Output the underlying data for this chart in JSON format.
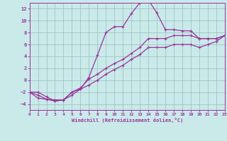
{
  "xlabel": "Windchill (Refroidissement éolien,°C)",
  "bg_color": "#caeaea",
  "line_color": "#993399",
  "grid_color": "#99bbbb",
  "x_min": 0,
  "x_max": 23,
  "y_min": -5,
  "y_max": 13,
  "yticks": [
    -4,
    -2,
    0,
    2,
    4,
    6,
    8,
    10,
    12
  ],
  "xticks": [
    0,
    1,
    2,
    3,
    4,
    5,
    6,
    7,
    8,
    9,
    10,
    11,
    12,
    13,
    14,
    15,
    16,
    17,
    18,
    19,
    20,
    21,
    22,
    23
  ],
  "curve1_x": [
    0,
    1,
    2,
    3,
    4,
    5,
    6,
    7,
    8,
    9,
    10,
    11,
    12,
    13,
    14,
    15,
    16,
    17,
    18,
    19,
    20,
    21,
    22,
    23
  ],
  "curve1_y": [
    -2.0,
    -3.0,
    -3.2,
    -3.5,
    -3.3,
    -2.5,
    -1.5,
    0.5,
    4.2,
    8.0,
    9.0,
    9.0,
    11.2,
    13.0,
    13.5,
    11.3,
    8.5,
    8.5,
    8.3,
    8.3,
    7.0,
    7.0,
    7.0,
    7.5
  ],
  "curve2_x": [
    0,
    1,
    2,
    3,
    4,
    5,
    6,
    7,
    8,
    9,
    10,
    11,
    12,
    13,
    14,
    15,
    16,
    17,
    18,
    19,
    20,
    21,
    22,
    23
  ],
  "curve2_y": [
    -2.0,
    -2.5,
    -3.2,
    -3.3,
    -3.3,
    -2.0,
    -1.3,
    0.2,
    1.0,
    2.0,
    2.8,
    3.5,
    4.5,
    5.5,
    7.0,
    7.0,
    7.0,
    7.5,
    7.5,
    7.5,
    7.0,
    7.0,
    7.0,
    7.5
  ],
  "curve3_x": [
    0,
    1,
    2,
    3,
    4,
    5,
    6,
    7,
    8,
    9,
    10,
    11,
    12,
    13,
    14,
    15,
    16,
    17,
    18,
    19,
    20,
    21,
    22,
    23
  ],
  "curve3_y": [
    -2.0,
    -2.0,
    -2.8,
    -3.5,
    -3.3,
    -2.0,
    -1.5,
    -0.8,
    0.0,
    1.0,
    1.8,
    2.5,
    3.5,
    4.3,
    5.5,
    5.5,
    5.5,
    6.0,
    6.0,
    6.0,
    5.5,
    6.0,
    6.5,
    7.5
  ]
}
